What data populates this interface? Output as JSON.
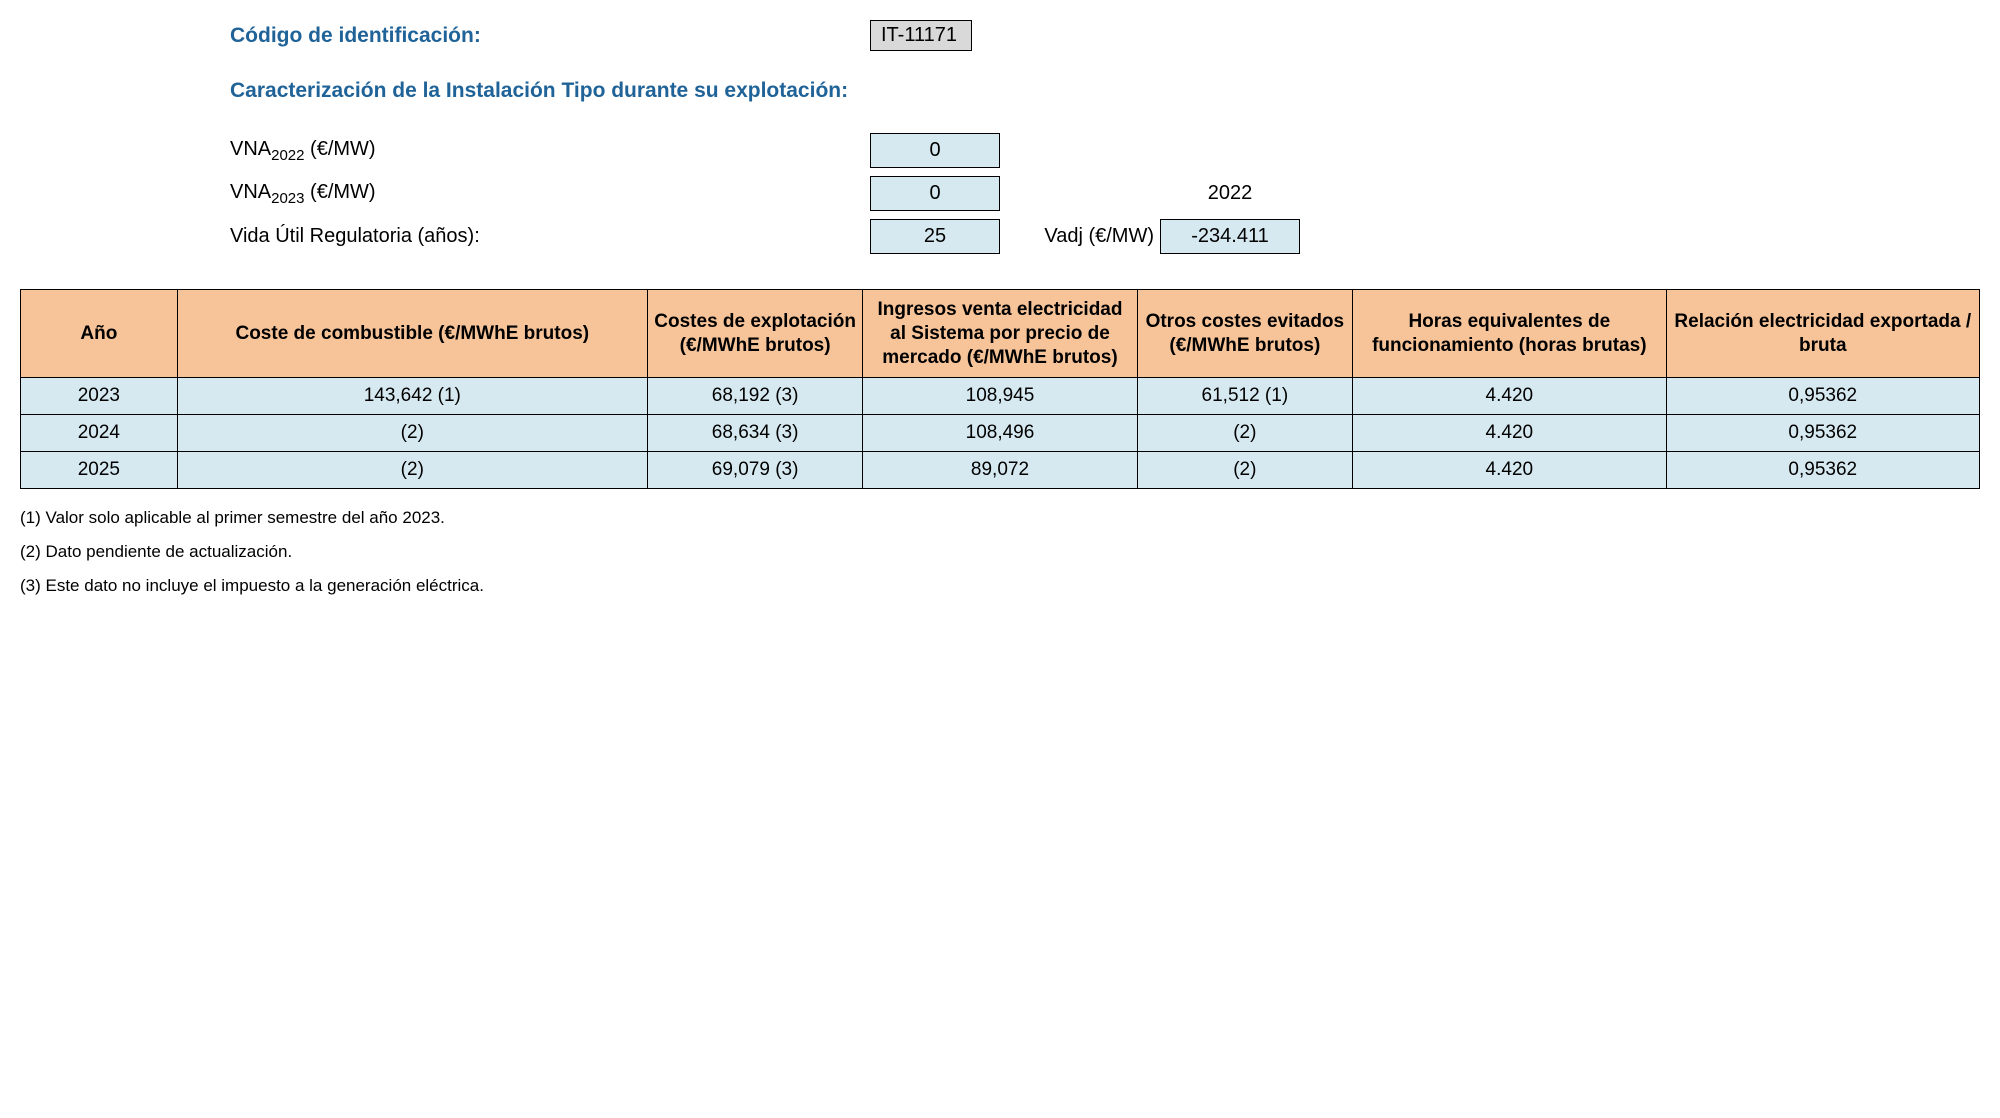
{
  "header": {
    "id_label": "Código de identificación:",
    "id_value": "IT-11171",
    "section_title": "Caracterización de la Instalación Tipo durante su explotación:"
  },
  "params": {
    "vna2022_label_prefix": "VNA",
    "vna2022_label_sub": "2022",
    "vna2022_label_suffix": " (€/MW)",
    "vna2022_value": "0",
    "vna2023_label_prefix": "VNA",
    "vna2023_label_sub": "2023",
    "vna2023_label_suffix": " (€/MW)",
    "vna2023_value": "0",
    "year_ref": "2022",
    "vida_label": "Vida Útil Regulatoria (años):",
    "vida_value": "25",
    "vadj_label": "Vadj (€/MW)",
    "vadj_value": "-234.411"
  },
  "table": {
    "headers": {
      "year": "Año",
      "combustible": "Coste de combustible (€/MWhE brutos)",
      "explotacion": "Costes de explotación (€/MWhE brutos)",
      "ingresos": "Ingresos venta electricidad al Sistema por precio de mercado (€/MWhE brutos)",
      "evitados": "Otros costes evitados (€/MWhE brutos)",
      "horas": "Horas equivalentes de funcionamiento (horas brutas)",
      "relacion": "Relación electricidad exportada / bruta"
    },
    "rows": [
      {
        "year": "2023",
        "combustible": "143,642 (1)",
        "explotacion": "68,192 (3)",
        "ingresos": "108,945",
        "evitados": "61,512 (1)",
        "horas": "4.420",
        "relacion": "0,95362"
      },
      {
        "year": "2024",
        "combustible": "(2)",
        "explotacion": "68,634 (3)",
        "ingresos": "108,496",
        "evitados": "(2)",
        "horas": "4.420",
        "relacion": "0,95362"
      },
      {
        "year": "2025",
        "combustible": "(2)",
        "explotacion": "69,079 (3)",
        "ingresos": "89,072",
        "evitados": "(2)",
        "horas": "4.420",
        "relacion": "0,95362"
      }
    ]
  },
  "footnotes": {
    "f1": "(1) Valor solo aplicable al primer semestre del año 2023.",
    "f2": "(2) Dato pendiente de actualización.",
    "f3": "(3) Este dato no incluye el impuesto a la generación eléctrica."
  },
  "colors": {
    "heading_blue": "#1f6398",
    "header_bg": "#f7c499",
    "cell_bg": "#d6e9f0",
    "code_bg": "#d9d9d9",
    "border": "#000000"
  }
}
